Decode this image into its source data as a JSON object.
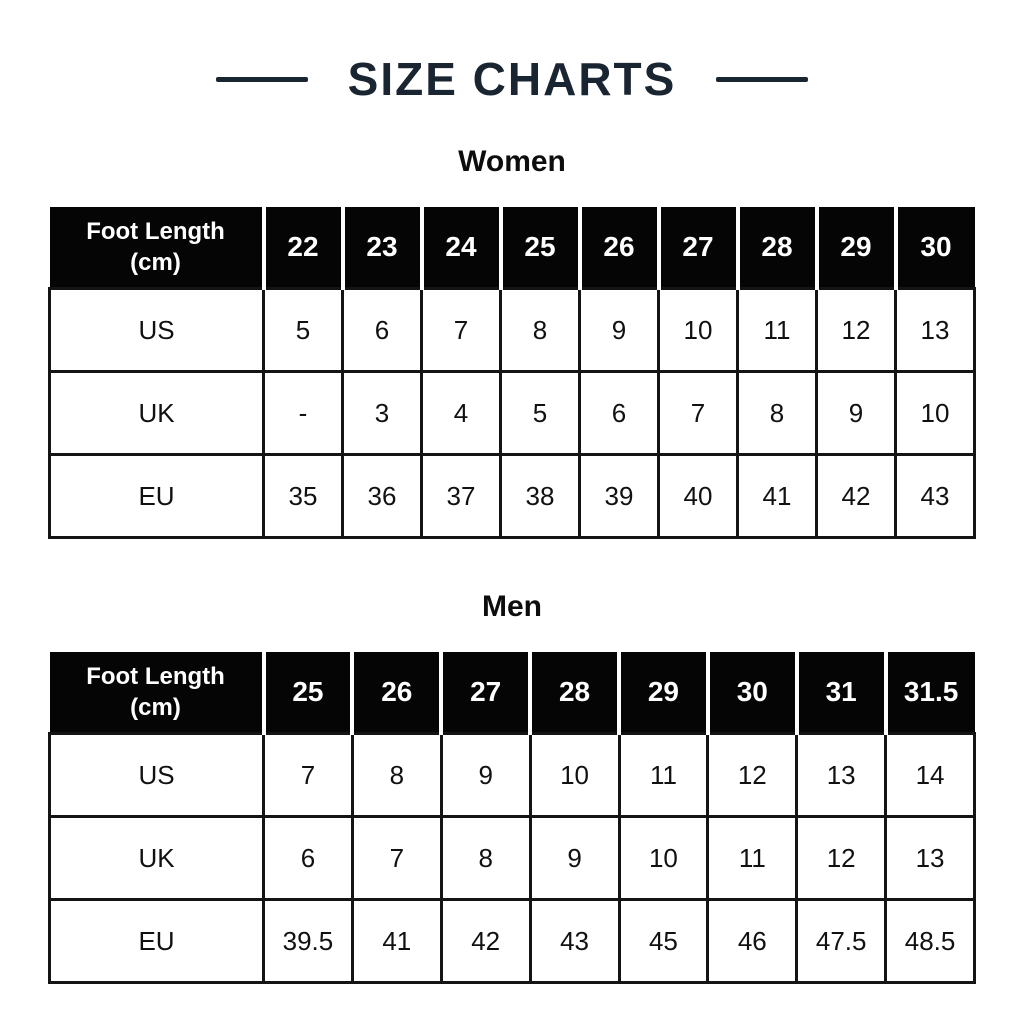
{
  "page": {
    "title": "SIZE CHARTS",
    "colors": {
      "background": "#ffffff",
      "title_navy": "#1a2532",
      "header_bg": "#050505",
      "header_text": "#ffffff",
      "body_text": "#111111",
      "table_border": "#141414"
    }
  },
  "tables": [
    {
      "section_title": "Women",
      "header": [
        "Foot Length (cm)",
        "22",
        "23",
        "24",
        "25",
        "26",
        "27",
        "28",
        "29",
        "30"
      ],
      "rows": [
        {
          "label": "US",
          "values": [
            "5",
            "6",
            "7",
            "8",
            "9",
            "10",
            "11",
            "12",
            "13"
          ]
        },
        {
          "label": "UK",
          "values": [
            "-",
            "3",
            "4",
            "5",
            "6",
            "7",
            "8",
            "9",
            "10"
          ]
        },
        {
          "label": "EU",
          "values": [
            "35",
            "36",
            "37",
            "38",
            "39",
            "40",
            "41",
            "42",
            "43"
          ]
        }
      ]
    },
    {
      "section_title": "Men",
      "header": [
        "Foot Length (cm)",
        "25",
        "26",
        "27",
        "28",
        "29",
        "30",
        "31",
        "31.5"
      ],
      "rows": [
        {
          "label": "US",
          "values": [
            "7",
            "8",
            "9",
            "10",
            "11",
            "12",
            "13",
            "14"
          ]
        },
        {
          "label": "UK",
          "values": [
            "6",
            "7",
            "8",
            "9",
            "10",
            "11",
            "12",
            "13"
          ]
        },
        {
          "label": "EU",
          "values": [
            "39.5",
            "41",
            "42",
            "43",
            "45",
            "46",
            "47.5",
            "48.5"
          ]
        }
      ]
    }
  ]
}
